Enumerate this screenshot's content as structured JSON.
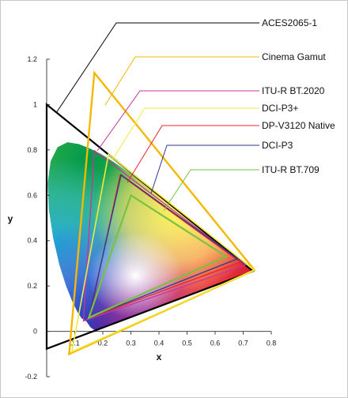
{
  "chart_data": {
    "type": "line",
    "title": "",
    "xlabel": "x",
    "ylabel": "y",
    "xlim": [
      0,
      0.8
    ],
    "ylim": [
      -0.2,
      1.2
    ],
    "x_ticks": [
      {
        "value": 0.1,
        "label": "0.1"
      },
      {
        "value": 0.2,
        "label": "0.2"
      },
      {
        "value": 0.3,
        "label": "0.3"
      },
      {
        "value": 0.4,
        "label": "0.4"
      },
      {
        "value": 0.5,
        "label": "0.5"
      },
      {
        "value": 0.6,
        "label": "0.6"
      },
      {
        "value": 0.7,
        "label": "0.7"
      },
      {
        "value": 0.8,
        "label": "0.8"
      }
    ],
    "y_ticks": [
      {
        "value": -0.2,
        "label": "-0.2"
      },
      {
        "value": 0,
        "label": "0"
      },
      {
        "value": 0.2,
        "label": "0.2"
      },
      {
        "value": 0.4,
        "label": "0.4"
      },
      {
        "value": 0.6,
        "label": "0.6"
      },
      {
        "value": 0.8,
        "label": "0.8"
      },
      {
        "value": 1,
        "label": "1"
      },
      {
        "value": 1.2,
        "label": "1.2"
      }
    ],
    "grid": false,
    "legend_position": "right",
    "series": [
      {
        "name": "ACES2065-1",
        "color": "#000000",
        "points": [
          [
            0.7347,
            0.2653
          ],
          [
            0.0,
            1.0
          ],
          [
            0.0001,
            -0.077
          ]
        ]
      },
      {
        "name": "Cinema Gamut",
        "color": "#f5b800",
        "points": [
          [
            0.74,
            0.27
          ],
          [
            0.17,
            1.14
          ],
          [
            0.08,
            -0.1
          ]
        ]
      },
      {
        "name": "ITU-R BT.2020",
        "color": "#cc3399",
        "points": [
          [
            0.708,
            0.292
          ],
          [
            0.17,
            0.797
          ],
          [
            0.131,
            0.046
          ]
        ]
      },
      {
        "name": "DCI-P3+",
        "color": "#f0ea3c",
        "points": [
          [
            0.74,
            0.27
          ],
          [
            0.22,
            0.78
          ],
          [
            0.09,
            -0.09
          ]
        ]
      },
      {
        "name": "DP-V3120 Native",
        "color": "#e8242c",
        "points": [
          [
            0.69,
            0.305
          ],
          [
            0.262,
            0.69
          ],
          [
            0.152,
            0.06
          ]
        ]
      },
      {
        "name": "DCI-P3",
        "color": "#2b3a8c",
        "points": [
          [
            0.68,
            0.32
          ],
          [
            0.265,
            0.69
          ],
          [
            0.15,
            0.06
          ]
        ]
      },
      {
        "name": "ITU-R BT.709",
        "color": "#7ac143",
        "points": [
          [
            0.64,
            0.33
          ],
          [
            0.3,
            0.6
          ],
          [
            0.15,
            0.06
          ]
        ]
      }
    ]
  }
}
